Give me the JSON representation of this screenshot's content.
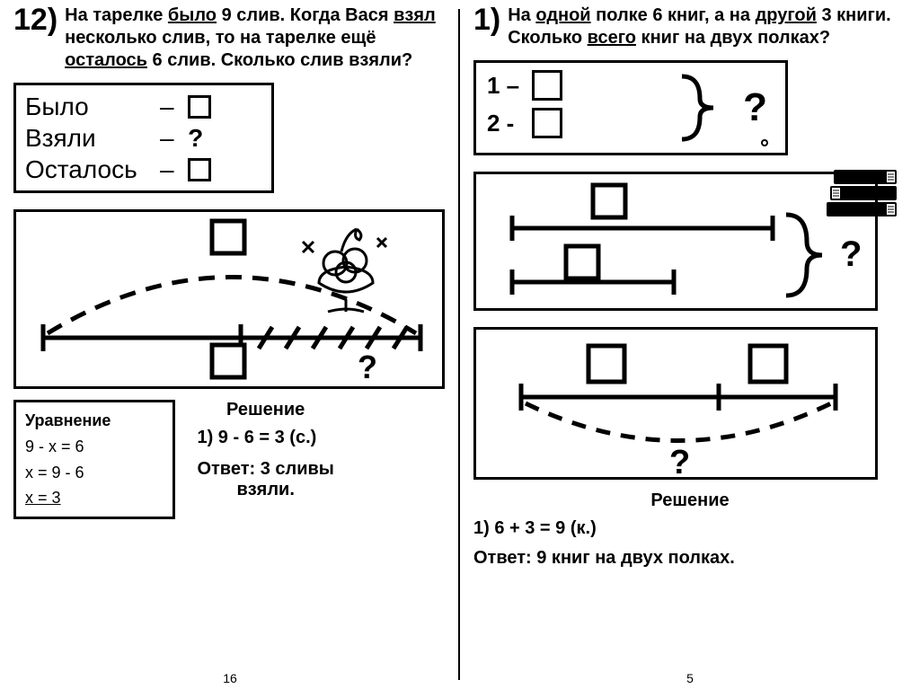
{
  "left": {
    "number": "12)",
    "problem_html": "На тарелке <u>было</u> 9 слив. Когда Вася <u>взял</u> несколько слив, то на тарелке ещё <u>осталось</u> 6 слив. Сколько слив взяли?",
    "summary": {
      "row1": "Было",
      "row2": "Взяли",
      "row3": "Осталось",
      "q": "?"
    },
    "diagram_q": "?",
    "equation": {
      "title": "Уравнение",
      "l1": "9 - x = 6",
      "l2": "x = 9 - 6",
      "l3": "x = 3"
    },
    "solution": {
      "title": "Решение",
      "step": "1) 9 - 6 = 3 (с.)",
      "answer": "Ответ: 3 сливы взяли."
    },
    "page_no": "16"
  },
  "right": {
    "number": "1)",
    "problem_html": "На <u>одной</u> полке 6 книг, а на <u>другой</u> 3 книги. Сколько <u>всего</u> книг на двух полках?",
    "summary": {
      "r1": "1 –",
      "r2": "2 -",
      "q": "?"
    },
    "diagram1_q": "?",
    "diagram2_q": "?",
    "solution": {
      "title": "Решение",
      "step": "1) 6 + 3 = 9 (к.)",
      "answer": "Ответ: 9 книг на двух полках."
    },
    "page_no": "5"
  },
  "colors": {
    "stroke": "#000000",
    "bg": "#ffffff"
  }
}
